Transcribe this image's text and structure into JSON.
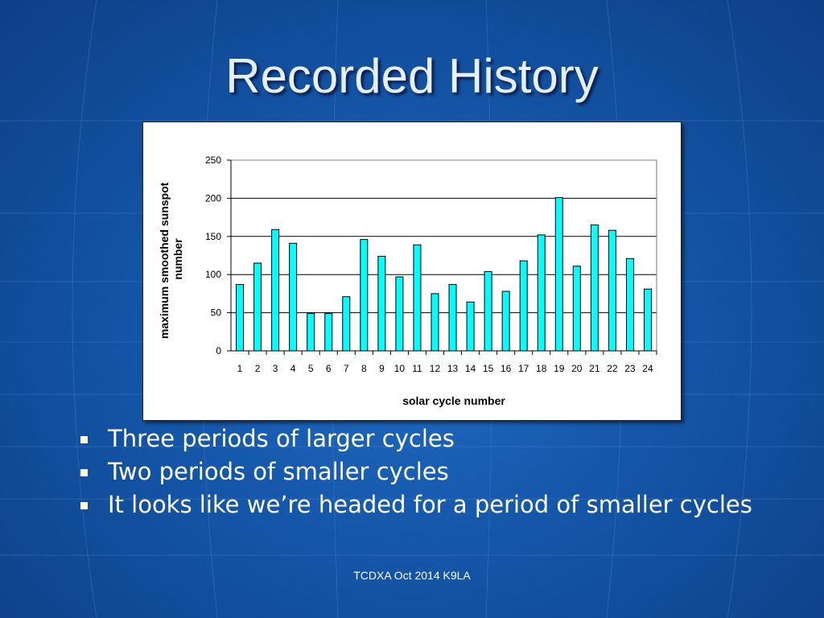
{
  "slide": {
    "title": "Recorded History",
    "bullets": [
      "Three periods of larger cycles",
      "Two periods of smaller cycles",
      "It looks like we’re headed for a period of smaller cycles"
    ],
    "footer": "TCDXA Oct 2014 K9LA"
  },
  "colors": {
    "background": "#1456a8",
    "bar_fill": "#00ffff",
    "title_text": "#e8f0ff"
  },
  "chart_data": {
    "type": "bar",
    "xlabel": "solar cycle number",
    "ylabel": "maximum smoothed sunspot number",
    "categories": [
      "1",
      "2",
      "3",
      "4",
      "5",
      "6",
      "7",
      "8",
      "9",
      "10",
      "11",
      "12",
      "13",
      "14",
      "15",
      "16",
      "17",
      "18",
      "19",
      "20",
      "21",
      "22",
      "23",
      "24"
    ],
    "values": [
      87,
      115,
      159,
      141,
      49,
      49,
      71,
      146,
      124,
      97,
      139,
      75,
      87,
      64,
      104,
      78,
      118,
      152,
      201,
      111,
      165,
      158,
      121,
      81
    ],
    "ylim": [
      0,
      250
    ],
    "yticks": [
      0,
      50,
      100,
      150,
      200,
      250
    ],
    "grid": true,
    "legend": false
  }
}
